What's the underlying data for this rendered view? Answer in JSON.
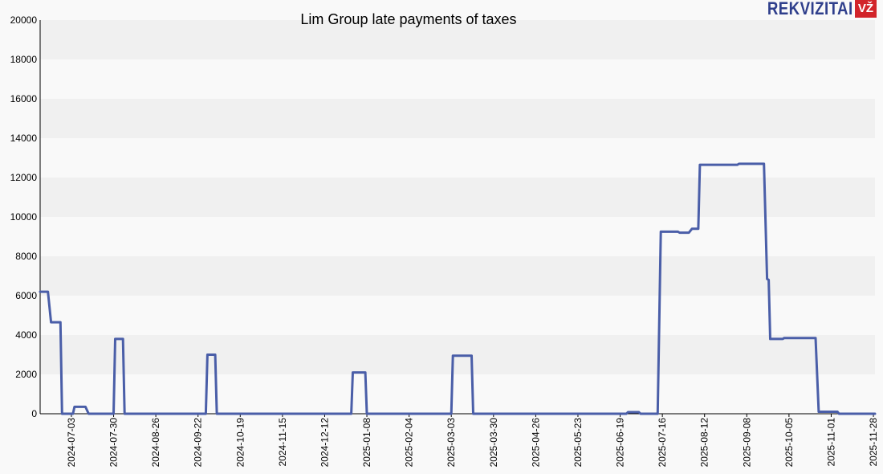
{
  "logo": {
    "text": "REKVIZITAI",
    "badge": "VŽ"
  },
  "colors": {
    "line": "#4a5ea8",
    "band_dark": "#f0f0f0",
    "band_light": "#f9f9f9"
  },
  "chart_data": {
    "type": "line",
    "title": "Lim Group late payments of taxes",
    "xlabel": "",
    "ylabel": "",
    "ylim": [
      0,
      20000
    ],
    "yticks": [
      0,
      2000,
      4000,
      6000,
      8000,
      10000,
      12000,
      14000,
      16000,
      18000,
      20000
    ],
    "xlim": [
      "2024-06-13",
      "2025-11-29"
    ],
    "xticks": [
      "2024-07-03",
      "2024-07-30",
      "2024-08-26",
      "2024-09-22",
      "2024-10-19",
      "2024-11-15",
      "2024-12-12",
      "2025-01-08",
      "2025-02-04",
      "2025-03-03",
      "2025-03-30",
      "2025-04-26",
      "2025-05-23",
      "2025-06-19",
      "2025-07-16",
      "2025-08-12",
      "2025-09-08",
      "2025-10-05",
      "2025-11-01",
      "2025-11-28"
    ],
    "grid": "horizontal bands",
    "series": [
      {
        "points": [
          [
            "2024-06-13",
            6200
          ],
          [
            "2024-06-18",
            6200
          ],
          [
            "2024-06-20",
            4650
          ],
          [
            "2024-06-26",
            4650
          ],
          [
            "2024-06-27",
            0
          ],
          [
            "2024-07-04",
            0
          ],
          [
            "2024-07-05",
            350
          ],
          [
            "2024-07-12",
            350
          ],
          [
            "2024-07-14",
            0
          ],
          [
            "2024-07-30",
            0
          ],
          [
            "2024-07-31",
            3800
          ],
          [
            "2024-08-05",
            3800
          ],
          [
            "2024-08-06",
            0
          ],
          [
            "2024-09-27",
            0
          ],
          [
            "2024-09-28",
            3000
          ],
          [
            "2024-10-03",
            3000
          ],
          [
            "2024-10-04",
            0
          ],
          [
            "2024-12-29",
            0
          ],
          [
            "2024-12-30",
            2100
          ],
          [
            "2025-01-07",
            2100
          ],
          [
            "2025-01-08",
            0
          ],
          [
            "2025-03-03",
            0
          ],
          [
            "2025-03-04",
            2950
          ],
          [
            "2025-03-16",
            2950
          ],
          [
            "2025-03-17",
            0
          ],
          [
            "2025-06-23",
            0
          ],
          [
            "2025-06-24",
            80
          ],
          [
            "2025-07-01",
            80
          ],
          [
            "2025-07-02",
            0
          ],
          [
            "2025-07-13",
            0
          ],
          [
            "2025-07-15",
            9250
          ],
          [
            "2025-07-26",
            9250
          ],
          [
            "2025-07-27",
            9200
          ],
          [
            "2025-08-02",
            9200
          ],
          [
            "2025-08-04",
            9400
          ],
          [
            "2025-08-08",
            9400
          ],
          [
            "2025-08-09",
            12650
          ],
          [
            "2025-09-02",
            12650
          ],
          [
            "2025-09-03",
            12700
          ],
          [
            "2025-09-19",
            12700
          ],
          [
            "2025-09-21",
            6850
          ],
          [
            "2025-09-22",
            6800
          ],
          [
            "2025-09-23",
            3800
          ],
          [
            "2025-10-01",
            3800
          ],
          [
            "2025-10-02",
            3850
          ],
          [
            "2025-10-22",
            3850
          ],
          [
            "2025-10-24",
            100
          ],
          [
            "2025-11-05",
            100
          ],
          [
            "2025-11-06",
            0
          ],
          [
            "2025-11-29",
            0
          ]
        ]
      }
    ]
  }
}
